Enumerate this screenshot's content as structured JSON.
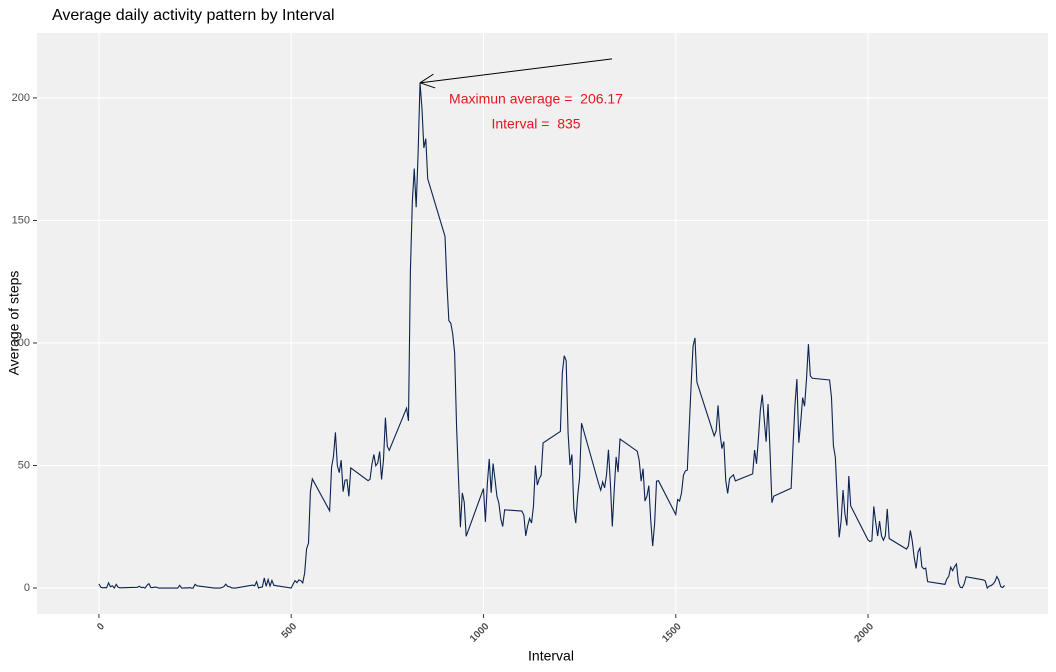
{
  "chart_data": {
    "type": "line",
    "title": "Average daily activity pattern by Interval",
    "x_label": "Interval",
    "y_label": "Average of steps",
    "annotations": [
      "Maximun average =  206.17",
      "Interval =  835"
    ],
    "xlim": [
      -161,
      2468
    ],
    "ylim": [
      -10.6,
      226.5
    ],
    "xticks": [
      0,
      500,
      1000,
      1500,
      2000
    ],
    "yticks": [
      0,
      50,
      100,
      150,
      200
    ],
    "grid": true,
    "x": [
      0,
      5,
      10,
      15,
      20,
      25,
      30,
      35,
      40,
      45,
      50,
      55,
      100,
      105,
      110,
      115,
      120,
      125,
      130,
      135,
      140,
      145,
      150,
      155,
      200,
      205,
      210,
      215,
      220,
      225,
      230,
      235,
      240,
      245,
      250,
      255,
      300,
      305,
      310,
      315,
      320,
      325,
      330,
      335,
      340,
      345,
      350,
      355,
      400,
      405,
      410,
      415,
      420,
      425,
      430,
      435,
      440,
      445,
      450,
      455,
      500,
      505,
      510,
      515,
      520,
      525,
      530,
      535,
      540,
      545,
      550,
      555,
      600,
      605,
      610,
      615,
      620,
      625,
      630,
      635,
      640,
      645,
      650,
      655,
      700,
      705,
      710,
      715,
      720,
      725,
      730,
      735,
      740,
      745,
      750,
      755,
      800,
      805,
      810,
      815,
      820,
      825,
      830,
      835,
      840,
      845,
      850,
      855,
      900,
      905,
      910,
      915,
      920,
      925,
      930,
      935,
      940,
      945,
      950,
      955,
      1000,
      1005,
      1010,
      1015,
      1020,
      1025,
      1030,
      1035,
      1040,
      1045,
      1050,
      1055,
      1100,
      1105,
      1110,
      1115,
      1120,
      1125,
      1130,
      1135,
      1140,
      1145,
      1150,
      1155,
      1200,
      1205,
      1210,
      1215,
      1220,
      1225,
      1230,
      1235,
      1240,
      1245,
      1250,
      1255,
      1300,
      1305,
      1310,
      1315,
      1320,
      1325,
      1330,
      1335,
      1340,
      1345,
      1350,
      1355,
      1400,
      1405,
      1410,
      1415,
      1420,
      1425,
      1430,
      1435,
      1440,
      1445,
      1450,
      1455,
      1500,
      1505,
      1510,
      1515,
      1520,
      1525,
      1530,
      1535,
      1540,
      1545,
      1550,
      1555,
      1600,
      1605,
      1610,
      1615,
      1620,
      1625,
      1630,
      1635,
      1640,
      1645,
      1650,
      1655,
      1700,
      1705,
      1710,
      1715,
      1720,
      1725,
      1730,
      1735,
      1740,
      1745,
      1750,
      1755,
      1800,
      1805,
      1810,
      1815,
      1820,
      1825,
      1830,
      1835,
      1840,
      1845,
      1850,
      1855,
      1900,
      1905,
      1910,
      1915,
      1920,
      1925,
      1930,
      1935,
      1940,
      1945,
      1950,
      1955,
      2000,
      2005,
      2010,
      2015,
      2020,
      2025,
      2030,
      2035,
      2040,
      2045,
      2050,
      2055,
      2100,
      2105,
      2110,
      2115,
      2120,
      2125,
      2130,
      2135,
      2140,
      2145,
      2150,
      2155,
      2200,
      2205,
      2210,
      2215,
      2220,
      2225,
      2230,
      2235,
      2240,
      2245,
      2250,
      2255,
      2300,
      2305,
      2310,
      2315,
      2320,
      2325,
      2330,
      2335,
      2340,
      2345,
      2350,
      2355
    ],
    "series": [
      {
        "color": "#0b2350",
        "values": [
          1.7,
          0.3,
          0.1,
          0.2,
          0.1,
          2.1,
          0.5,
          0.9,
          0,
          1.5,
          0.3,
          0.1,
          0.3,
          0.7,
          0.2,
          0.3,
          0,
          1.1,
          1.8,
          0.2,
          0.2,
          0.4,
          0.3,
          0,
          0,
          0,
          1.1,
          0,
          0,
          0.1,
          0,
          0.2,
          0,
          0,
          1.5,
          0.9,
          0,
          0,
          0,
          0,
          0.2,
          0.6,
          1.6,
          0.6,
          0.5,
          0.1,
          0,
          0,
          1.2,
          0.9,
          2.6,
          0,
          0.3,
          0.4,
          4.1,
          0.7,
          3.5,
          0.8,
          3.1,
          1.1,
          0,
          1.6,
          3.0,
          2.2,
          3.3,
          3.0,
          2.1,
          6.1,
          16.0,
          18.3,
          39.5,
          44.5,
          31.5,
          49.3,
          53.8,
          63.5,
          50,
          47.1,
          52.2,
          39.3,
          44.0,
          44.2,
          37.4,
          49.0,
          43.8,
          44.4,
          50.5,
          54.5,
          49.9,
          51.0,
          55.7,
          44.3,
          52.3,
          69.5,
          57.8,
          56.2,
          73.4,
          68.2,
          129.4,
          157.5,
          171.2,
          155.4,
          177.3,
          206.17,
          195.9,
          179.6,
          183.4,
          167.0,
          143.5,
          124.0,
          109.1,
          108.1,
          103.7,
          96.0,
          66.2,
          45.2,
          24.8,
          38.8,
          35.0,
          21.1,
          40.6,
          27.0,
          42.4,
          52.7,
          38.9,
          50.8,
          44.3,
          37.4,
          34.7,
          28.3,
          25.1,
          31.9,
          31.4,
          29.7,
          21.3,
          25.5,
          28.4,
          26.5,
          33.4,
          50.0,
          42.0,
          44.6,
          46.0,
          59.2,
          63.9,
          87.7,
          94.8,
          92.8,
          63.4,
          50.2,
          54.5,
          32.4,
          26.5,
          37.7,
          45.1,
          67.3,
          42.3,
          39.9,
          43.3,
          40.9,
          46.2,
          56.4,
          42.8,
          25.1,
          40.0,
          53.5,
          47.3,
          60.8,
          55.8,
          52.0,
          43.6,
          48.7,
          35.5,
          37.5,
          41.8,
          27.5,
          17.1,
          26.1,
          43.6,
          43.8,
          30.0,
          36.1,
          35.5,
          38.8,
          46.0,
          47.8,
          48.1,
          65.3,
          82.9,
          98.7,
          102.1,
          84.0,
          62.1,
          64.1,
          74.5,
          63.2,
          56.9,
          59.8,
          43.9,
          38.6,
          44.7,
          45.5,
          46.2,
          43.7,
          46.6,
          56.3,
          50.7,
          61.2,
          72.7,
          78.9,
          68.9,
          59.7,
          75.1,
          56.5,
          34.8,
          37.5,
          40.7,
          58.0,
          74.7,
          85.3,
          59.3,
          67.8,
          77.7,
          74.2,
          85.3,
          99.5,
          86.6,
          85.6,
          84.9,
          77.8,
          58.0,
          53.4,
          36.3,
          20.7,
          27.4,
          40.0,
          30.2,
          25.5,
          45.7,
          33.5,
          19.6,
          19.0,
          19.3,
          33.3,
          26.8,
          21.2,
          27.3,
          21.3,
          19.5,
          21.3,
          32.3,
          20.2,
          15.9,
          17.2,
          23.5,
          19.2,
          12.5,
          8.0,
          14.7,
          16.3,
          8.7,
          7.8,
          8.1,
          2.6,
          1.5,
          3.7,
          4.8,
          8.5,
          7.1,
          8.7,
          9.8,
          2.2,
          0.3,
          0.1,
          1.6,
          4.6,
          3.3,
          2.8,
          0,
          0.8,
          1.0,
          1.6,
          2.6,
          4.7,
          3.3,
          0.6,
          0.2,
          1.1
        ]
      }
    ]
  }
}
